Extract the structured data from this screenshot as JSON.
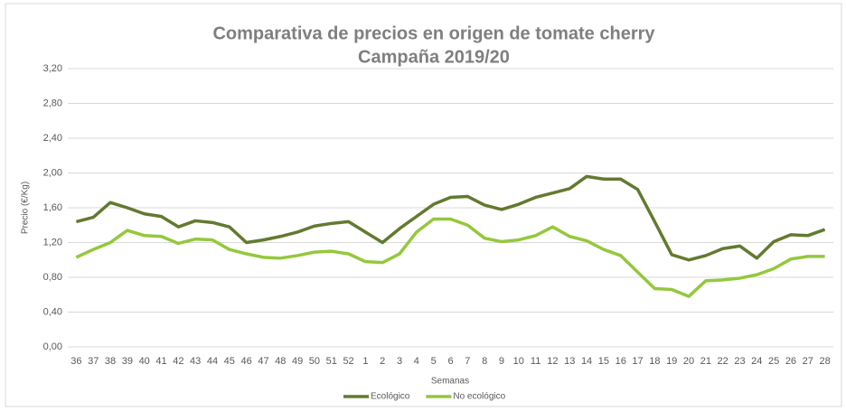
{
  "chart_data": {
    "type": "line",
    "title": "Comparativa de precios en origen de tomate cherry",
    "subtitle": "Campaña 2019/20",
    "y_label": "Precio (€/Kg)",
    "x_label": "Semanas",
    "categories": [
      "36",
      "37",
      "38",
      "39",
      "40",
      "41",
      "42",
      "43",
      "44",
      "45",
      "46",
      "47",
      "48",
      "49",
      "50",
      "51",
      "52",
      "1",
      "2",
      "3",
      "4",
      "5",
      "6",
      "7",
      "8",
      "9",
      "10",
      "11",
      "12",
      "13",
      "14",
      "15",
      "16",
      "17",
      "18",
      "19",
      "20",
      "21",
      "22",
      "23",
      "24",
      "25",
      "26",
      "27",
      "28"
    ],
    "series": [
      {
        "name": "Ecológico",
        "color": "#627a2f",
        "values": [
          1.44,
          1.49,
          1.66,
          1.6,
          1.53,
          1.5,
          1.38,
          1.45,
          1.43,
          1.38,
          1.2,
          1.23,
          1.27,
          1.32,
          1.39,
          1.42,
          1.44,
          1.32,
          1.2,
          1.36,
          1.5,
          1.64,
          1.72,
          1.73,
          1.63,
          1.58,
          1.64,
          1.72,
          1.77,
          1.82,
          1.96,
          1.93,
          1.93,
          1.81,
          1.44,
          1.06,
          1.0,
          1.05,
          1.13,
          1.16,
          1.02,
          1.21,
          1.29,
          1.28,
          1.35
        ]
      },
      {
        "name": "No ecológico",
        "color": "#94c83c",
        "values": [
          1.03,
          1.12,
          1.2,
          1.34,
          1.28,
          1.27,
          1.19,
          1.24,
          1.23,
          1.12,
          1.07,
          1.03,
          1.02,
          1.05,
          1.09,
          1.1,
          1.07,
          0.98,
          0.97,
          1.07,
          1.32,
          1.47,
          1.47,
          1.4,
          1.25,
          1.21,
          1.23,
          1.28,
          1.38,
          1.27,
          1.22,
          1.12,
          1.05,
          0.86,
          0.67,
          0.66,
          0.58,
          0.76,
          0.77,
          0.79,
          0.83,
          0.9,
          1.01,
          1.04,
          1.04
        ]
      }
    ],
    "ylim": [
      0,
      3.2
    ],
    "yticks": [
      {
        "value": 0,
        "label": "0,00"
      },
      {
        "value": 0.4,
        "label": "0,40"
      },
      {
        "value": 0.8,
        "label": "0,80"
      },
      {
        "value": 1.2,
        "label": "1,20"
      },
      {
        "value": 1.6,
        "label": "1,60"
      },
      {
        "value": 2.0,
        "label": "2,00"
      },
      {
        "value": 2.4,
        "label": "2,40"
      },
      {
        "value": 2.8,
        "label": "2,80"
      },
      {
        "value": 3.2,
        "label": "3,20"
      }
    ],
    "grid": true,
    "legend": "bottom"
  }
}
